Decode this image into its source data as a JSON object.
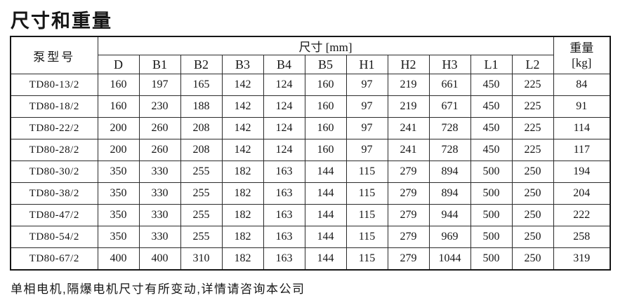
{
  "page": {
    "title": "尺寸和重量",
    "footnote": "单相电机,隔爆电机尺寸有所变动,详情请咨询本公司"
  },
  "colors": {
    "ink": "#161616",
    "line": "#2b2b2b",
    "frame": "#161616",
    "paper": "#ffffff"
  },
  "table": {
    "model_header": "泵型号",
    "dims_group_header": "尺寸 [mm]",
    "weight_header_line1": "重量",
    "weight_header_line2": "[kg]",
    "dim_columns": [
      "D",
      "B1",
      "B2",
      "B3",
      "B4",
      "B5",
      "H1",
      "H2",
      "H3",
      "L1",
      "L2"
    ],
    "rows": [
      {
        "model": "TD80-13/2",
        "values": [
          160,
          197,
          165,
          142,
          124,
          160,
          97,
          219,
          661,
          450,
          225
        ],
        "weight": 84
      },
      {
        "model": "TD80-18/2",
        "values": [
          160,
          230,
          188,
          142,
          124,
          160,
          97,
          219,
          671,
          450,
          225
        ],
        "weight": 91
      },
      {
        "model": "TD80-22/2",
        "values": [
          200,
          260,
          208,
          142,
          124,
          160,
          97,
          241,
          728,
          450,
          225
        ],
        "weight": 114
      },
      {
        "model": "TD80-28/2",
        "values": [
          200,
          260,
          208,
          142,
          124,
          160,
          97,
          241,
          728,
          450,
          225
        ],
        "weight": 117
      },
      {
        "model": "TD80-30/2",
        "values": [
          350,
          330,
          255,
          182,
          163,
          144,
          115,
          279,
          894,
          500,
          250
        ],
        "weight": 194
      },
      {
        "model": "TD80-38/2",
        "values": [
          350,
          330,
          255,
          182,
          163,
          144,
          115,
          279,
          894,
          500,
          250
        ],
        "weight": 204
      },
      {
        "model": "TD80-47/2",
        "values": [
          350,
          330,
          255,
          182,
          163,
          144,
          115,
          279,
          944,
          500,
          250
        ],
        "weight": 222
      },
      {
        "model": "TD80-54/2",
        "values": [
          350,
          330,
          255,
          182,
          163,
          144,
          115,
          279,
          969,
          500,
          250
        ],
        "weight": 258
      },
      {
        "model": "TD80-67/2",
        "values": [
          400,
          400,
          310,
          182,
          163,
          144,
          115,
          279,
          1044,
          500,
          250
        ],
        "weight": 319
      }
    ]
  }
}
